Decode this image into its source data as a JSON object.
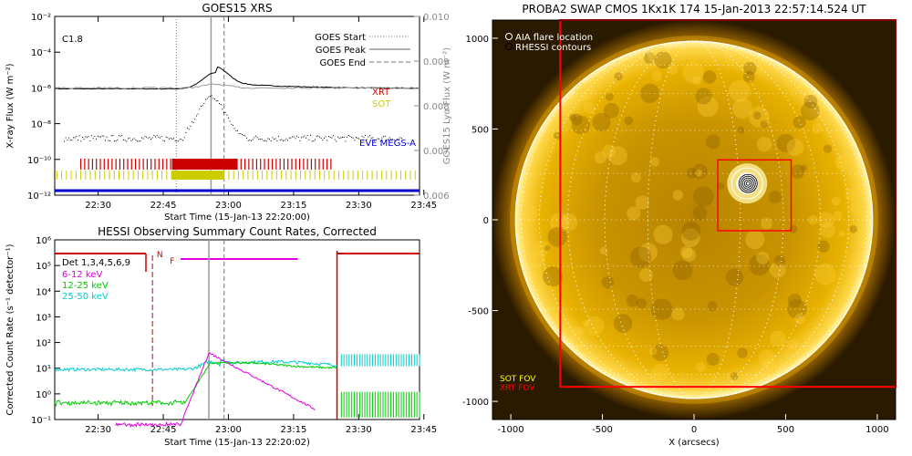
{
  "chart_data": [
    {
      "type": "line",
      "title": "GOES15 XRS",
      "xlabel": "Start Time (15-Jan-13 22:20:00)",
      "ylabel": "X-ray Flux (W m⁻²)",
      "y2label": "GOES15 Lyα Flux (W m⁻²)",
      "flare_class": "C1.8",
      "x_ticks": [
        "22:30",
        "22:45",
        "23:00",
        "23:15",
        "23:30",
        "23:45"
      ],
      "y_ticks": [
        "10⁻²",
        "10⁻⁴",
        "10⁻⁶",
        "10⁻⁸",
        "10⁻¹⁰",
        "10⁻¹²"
      ],
      "y2_ticks": [
        "0.010",
        "0.009",
        "0.008",
        "0.007",
        "0.006"
      ],
      "y_scale": "log",
      "ylim": [
        1e-12,
        0.01
      ],
      "y2lim": [
        0.006,
        0.01
      ],
      "xlim_minutes": [
        0,
        84
      ],
      "legend": [
        "GOES Start",
        "GOES Peak",
        "GOES End"
      ],
      "instrument_labels": [
        "XRT",
        "SOT",
        "EVE MEGS-A"
      ],
      "markers_minutes": {
        "start": 28,
        "peak": 36,
        "end": 39
      },
      "series": [
        {
          "name": "XRT",
          "color": "#cc0000",
          "coverage": [
            [
              6,
              64
            ]
          ]
        },
        {
          "name": "SOT",
          "color": "#cccc00",
          "coverage": [
            [
              0,
              84
            ]
          ]
        },
        {
          "name": "EVE MEGS-A",
          "color": "#0000cc",
          "coverage": [
            [
              0,
              84
            ]
          ]
        }
      ]
    },
    {
      "type": "line",
      "title": "HESSI Observing Summary Count Rates, Corrected",
      "xlabel": "Start Time (15-Jan-13 22:20:02)",
      "ylabel": "Corrected Count Rate (s⁻¹ detector⁻¹)",
      "x_ticks": [
        "22:30",
        "22:45",
        "23:00",
        "23:15",
        "23:30",
        "23:45"
      ],
      "y_ticks": [
        "10⁶",
        "10⁵",
        "10⁴",
        "10³",
        "10²",
        "10¹",
        "10⁰",
        "10⁻¹"
      ],
      "y_scale": "log",
      "ylim": [
        0.1,
        1000000.0
      ],
      "legend_title": "Det 1,3,4,5,6,9",
      "flags": [
        "N",
        "F"
      ],
      "series": [
        {
          "name": "6-12 keV",
          "color": "#e000e0"
        },
        {
          "name": "12-25 keV",
          "color": "#00cc00"
        },
        {
          "name": "25-50 keV",
          "color": "#00cccc"
        }
      ]
    },
    {
      "type": "image",
      "title": "PROBA2 SWAP CMOS 1Kx1K 174 15-Jan-2013 22:57:14.524 UT",
      "xlabel": "X (arcsecs)",
      "x_ticks": [
        "-1000",
        "-500",
        "0",
        "500",
        "1000"
      ],
      "y_ticks": [
        "1000",
        "500",
        "0",
        "-500",
        "-1000"
      ],
      "xlim": [
        -1100,
        1100
      ],
      "ylim": [
        -1100,
        1100
      ],
      "legend": [
        "AIA flare location",
        "RHESSI contours"
      ],
      "fov_labels": [
        "SOT FOV",
        "XRT FOV"
      ],
      "flare_location_arcsec": [
        290,
        200
      ],
      "sot_box_arcsec": [
        130,
        -60,
        530,
        330
      ],
      "xrt_box_arcsec": [
        -730,
        -920,
        1100,
        1100
      ]
    }
  ]
}
